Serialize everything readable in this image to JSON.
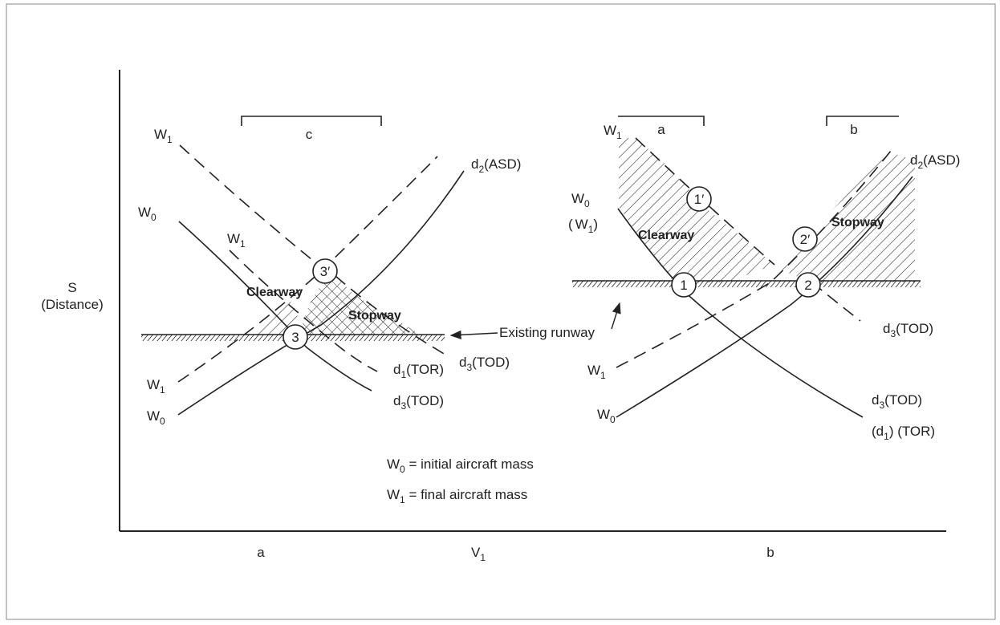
{
  "axes": {
    "y_label_line1": "S",
    "y_label_line2": "(Distance)",
    "x_tick_a": "a",
    "x_label_main": "V",
    "x_label_sub": "1",
    "x_tick_b": "b"
  },
  "left_panel": {
    "bracket_label": "c",
    "curve_w1_top": {
      "main": "W",
      "sub": "1"
    },
    "curve_w0": {
      "main": "W",
      "sub": "0"
    },
    "curve_w1_mid": {
      "main": "W",
      "sub": "1"
    },
    "curve_w1_bottom": {
      "main": "W",
      "sub": "1"
    },
    "curve_w0_bottom": {
      "main": "W",
      "sub": "0"
    },
    "asd_label": {
      "main": "d",
      "sub": "2",
      "rest": "(ASD)"
    },
    "tor_label": {
      "main": "d",
      "sub": "1",
      "rest": "(TOR)"
    },
    "tod_dashed_label": {
      "main": "d",
      "sub": "3",
      "rest": "(TOD)"
    },
    "tod_solid_label": {
      "main": "d",
      "sub": "3",
      "rest": "(TOD)"
    },
    "clearway": "Clearway",
    "stopway": "Stopway",
    "point_3": "3",
    "point_3_prime": "3′",
    "runway_label": "Existing runway"
  },
  "legend": {
    "w0": {
      "main": "W",
      "sub": "0",
      "rest": " = initial aircraft mass"
    },
    "w1": {
      "main": "W",
      "sub": "1",
      "rest": " = final aircraft mass"
    }
  },
  "right_panel": {
    "bracket_a": "a",
    "bracket_b": "b",
    "curve_w1_top": {
      "main": "W",
      "sub": "1"
    },
    "curve_w0": {
      "main": "W",
      "sub": "0"
    },
    "curve_w1_paren": {
      "open": "(",
      "main": "W",
      "sub": "1",
      "close": ")"
    },
    "curve_w1_bottom": {
      "main": "W",
      "sub": "1"
    },
    "curve_w0_bottom": {
      "main": "W",
      "sub": "0"
    },
    "asd_label": {
      "main": "d",
      "sub": "2",
      "rest": "(ASD)"
    },
    "tod_dashed_label": {
      "main": "d",
      "sub": "3",
      "rest": "(TOD)"
    },
    "tod_solid_label": {
      "main": "d",
      "sub": "3",
      "rest": "(TOD)"
    },
    "tor_label": {
      "open": "(d",
      "sub": "1",
      "rest": ") (TOR)"
    },
    "clearway": "Clearway",
    "stopway": "Stopway",
    "point_1": "1",
    "point_1_prime": "1′",
    "point_2": "2",
    "point_2_prime": "2′"
  }
}
